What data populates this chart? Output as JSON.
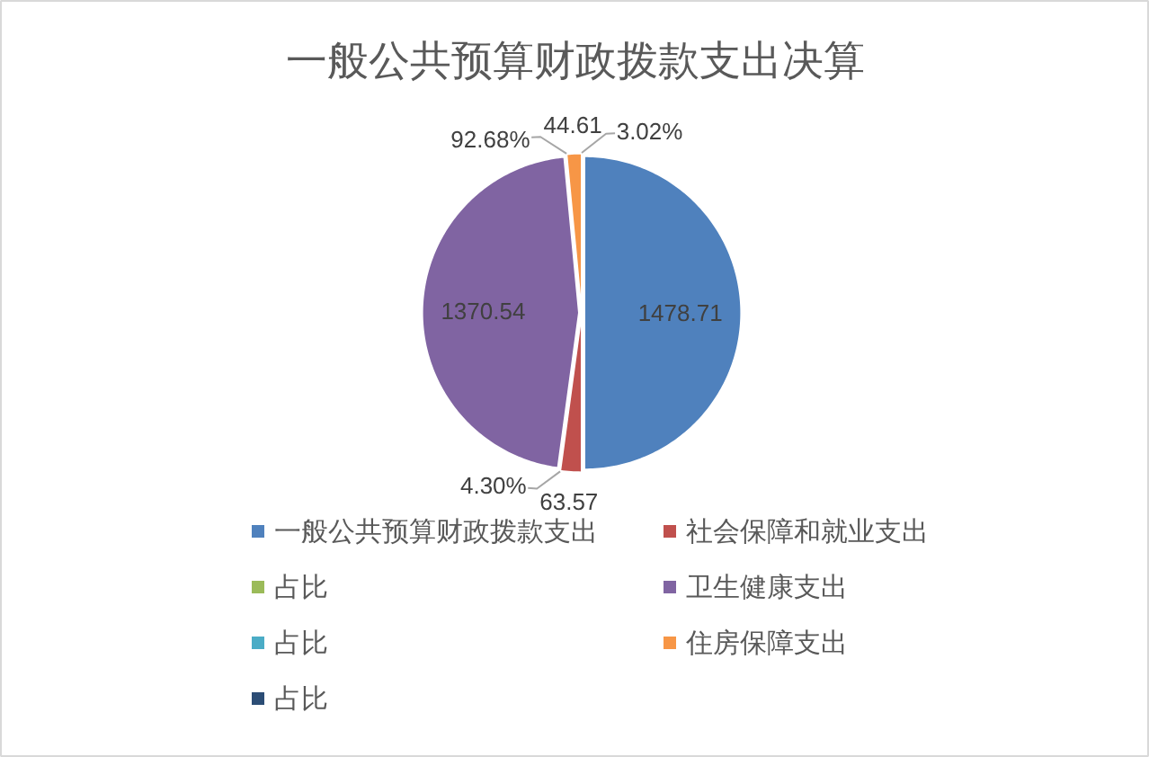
{
  "chart_data": {
    "type": "pie",
    "title": "一般公共预算财政拨款支出决算",
    "categories": [
      "一般公共预算财政拨款支出",
      "社会保障和就业支出",
      "占比",
      "卫生健康支出",
      "占比",
      "住房保障支出",
      "占比"
    ],
    "values": [
      1478.71,
      63.57,
      null,
      1370.54,
      null,
      44.61,
      null
    ],
    "value_labels": [
      "1478.71",
      "63.57",
      "4.30%",
      "1370.54",
      "92.68%",
      "44.61",
      "3.02%"
    ],
    "colors": [
      "#4f81bd",
      "#c0504d",
      "#9bbb59",
      "#8064a2",
      "#4bacc6",
      "#f79646",
      "#2c4d75"
    ],
    "legend": "bottom"
  }
}
